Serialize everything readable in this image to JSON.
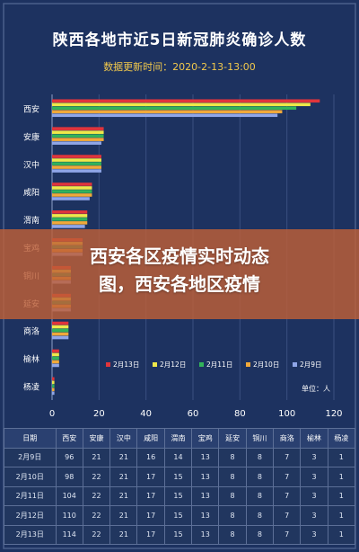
{
  "header": {
    "title": "陕西各地市近5日新冠肺炎确诊人数",
    "subtitle": "数据更新时间：2020-2-13-13:00"
  },
  "overlay": {
    "line1": "西安各区疫情实时动态",
    "line2": "图，西安各地区疫情"
  },
  "unit_label": "单位：人",
  "colors": {
    "background": "#1d3260",
    "2月13日": "#e0353b",
    "2月12日": "#eee84a",
    "2月11日": "#32b35a",
    "2月10日": "#f0a93a",
    "2月9日": "#8fa6e8"
  },
  "chart_data": {
    "type": "bar",
    "orientation": "horizontal",
    "title": "陕西各地市近5日新冠肺炎确诊人数",
    "subtitle": "数据更新时间：2020-2-13-13:00",
    "categories": [
      "西安",
      "安康",
      "汉中",
      "咸阳",
      "渭南",
      "宝鸡",
      "铜川",
      "延安",
      "商洛",
      "榆林",
      "杨凌"
    ],
    "series": [
      {
        "name": "2月13日",
        "values": [
          114,
          22,
          21,
          17,
          15,
          13,
          8,
          8,
          7,
          3,
          1
        ]
      },
      {
        "name": "2月12日",
        "values": [
          110,
          22,
          21,
          17,
          15,
          13,
          8,
          8,
          7,
          3,
          1
        ]
      },
      {
        "name": "2月11日",
        "values": [
          104,
          22,
          21,
          17,
          15,
          13,
          8,
          8,
          7,
          3,
          1
        ]
      },
      {
        "name": "2月10日",
        "values": [
          98,
          22,
          21,
          17,
          15,
          13,
          8,
          8,
          7,
          3,
          1
        ]
      },
      {
        "name": "2月9日",
        "values": [
          96,
          21,
          21,
          16,
          14,
          13,
          8,
          8,
          7,
          3,
          1
        ]
      }
    ],
    "xlim": [
      0,
      120
    ],
    "xticks": [
      0,
      20,
      40,
      60,
      80,
      100,
      120
    ],
    "grid": true,
    "legend": "bottom-center",
    "unit": "单位：人"
  },
  "table": {
    "headers": [
      "日期",
      "西安",
      "安康",
      "汉中",
      "咸阳",
      "渭南",
      "宝鸡",
      "延安",
      "铜川",
      "商洛",
      "榆林",
      "杨凌"
    ],
    "rows": [
      [
        "2月9日",
        "96",
        "21",
        "21",
        "16",
        "14",
        "13",
        "8",
        "8",
        "7",
        "3",
        "1"
      ],
      [
        "2月10日",
        "98",
        "22",
        "21",
        "17",
        "15",
        "13",
        "8",
        "8",
        "7",
        "3",
        "1"
      ],
      [
        "2月11日",
        "104",
        "22",
        "21",
        "17",
        "15",
        "13",
        "8",
        "8",
        "7",
        "3",
        "1"
      ],
      [
        "2月12日",
        "110",
        "22",
        "21",
        "17",
        "15",
        "13",
        "8",
        "8",
        "7",
        "3",
        "1"
      ],
      [
        "2月13日",
        "114",
        "22",
        "21",
        "17",
        "15",
        "13",
        "8",
        "8",
        "7",
        "3",
        "1"
      ]
    ]
  }
}
